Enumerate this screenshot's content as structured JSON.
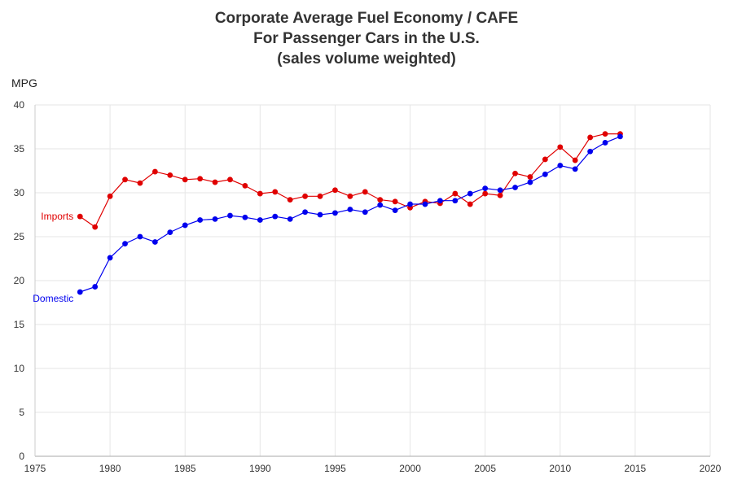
{
  "chart_data": {
    "type": "line",
    "title": [
      "Corporate Average Fuel Economy / CAFE",
      "For Passenger Cars in the U.S.",
      "(sales volume weighted)"
    ],
    "xlabel": "",
    "ylabel": "MPG",
    "xlim": [
      1975,
      2020
    ],
    "ylim": [
      0,
      40
    ],
    "xticks": [
      "1975",
      "1980",
      "1985",
      "1990",
      "1995",
      "2000",
      "2005",
      "2010",
      "2015",
      "2020"
    ],
    "yticks": [
      "0",
      "5",
      "10",
      "15",
      "20",
      "25",
      "30",
      "35",
      "40"
    ],
    "grid": true,
    "legend": "inline labels at series start",
    "series": [
      {
        "name": "Imports",
        "color": "#e00000",
        "x": [
          1978,
          1979,
          1980,
          1981,
          1982,
          1983,
          1984,
          1985,
          1986,
          1987,
          1988,
          1989,
          1990,
          1991,
          1992,
          1993,
          1994,
          1995,
          1996,
          1997,
          1998,
          1999,
          2000,
          2001,
          2002,
          2003,
          2004,
          2005,
          2006,
          2007,
          2008,
          2009,
          2010,
          2011,
          2012,
          2013,
          2014
        ],
        "y": [
          27.3,
          26.1,
          29.6,
          31.5,
          31.1,
          32.4,
          32.0,
          31.5,
          31.6,
          31.2,
          31.5,
          30.8,
          29.9,
          30.1,
          29.2,
          29.6,
          29.6,
          30.3,
          29.6,
          30.1,
          29.2,
          29.0,
          28.3,
          29.0,
          28.8,
          29.9,
          28.7,
          29.9,
          29.7,
          32.2,
          31.8,
          33.8,
          35.2,
          33.7,
          36.3,
          36.7,
          36.7
        ]
      },
      {
        "name": "Domestic",
        "color": "#0000ee",
        "x": [
          1978,
          1979,
          1980,
          1981,
          1982,
          1983,
          1984,
          1985,
          1986,
          1987,
          1988,
          1989,
          1990,
          1991,
          1992,
          1993,
          1994,
          1995,
          1996,
          1997,
          1998,
          1999,
          2000,
          2001,
          2002,
          2003,
          2004,
          2005,
          2006,
          2007,
          2008,
          2009,
          2010,
          2011,
          2012,
          2013,
          2014
        ],
        "y": [
          18.7,
          19.3,
          22.6,
          24.2,
          25.0,
          24.4,
          25.5,
          26.3,
          26.9,
          27.0,
          27.4,
          27.2,
          26.9,
          27.3,
          27.0,
          27.8,
          27.5,
          27.7,
          28.1,
          27.8,
          28.6,
          28.0,
          28.7,
          28.7,
          29.1,
          29.1,
          29.9,
          30.5,
          30.3,
          30.6,
          31.2,
          32.1,
          33.1,
          32.7,
          34.7,
          35.7,
          36.4
        ]
      }
    ]
  }
}
